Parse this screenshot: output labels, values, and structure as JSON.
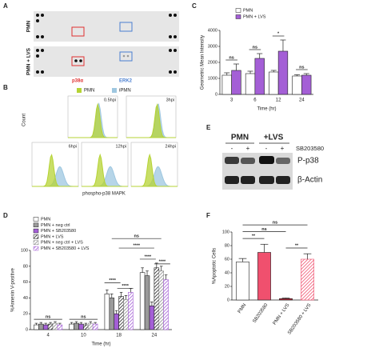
{
  "panel_labels": [
    "A",
    "B",
    "C",
    "D",
    "E",
    "F"
  ],
  "panel_a": {
    "rows": [
      "PMN",
      "PMN + LVS"
    ],
    "spots": [
      "p38α",
      "ERK2"
    ]
  },
  "panel_b": {
    "legend": [
      "PMN",
      "iPMN"
    ],
    "legend_colors": [
      "#b5d334",
      "#9ec7e0"
    ],
    "times": [
      "0.5hpi",
      "3hpi",
      "6hpi",
      "12hpi",
      "24hpi"
    ],
    "ylabel": "Count",
    "xlabel": "phospho-p38 MAPK"
  },
  "panel_e": {
    "groups": [
      "PMN",
      "+LVS"
    ],
    "treatment": "SB203580",
    "signs": [
      "-",
      "+",
      "-",
      "+"
    ],
    "bands": [
      "P-p38",
      "β-Actin"
    ]
  },
  "chart_data": [
    {
      "type": "bar",
      "ylabel": "Geometric Mean Intensity",
      "xlabel": "Time (hr)",
      "categories": [
        "3",
        "6",
        "12",
        "24"
      ],
      "series": [
        {
          "name": "PMN",
          "color": "#ffffff",
          "values": [
            1200,
            1300,
            1400,
            1150
          ],
          "errors": [
            150,
            150,
            100,
            80
          ]
        },
        {
          "name": "PMN + LVS",
          "color": "#a45fd6",
          "values": [
            1500,
            2250,
            2700,
            1200
          ],
          "errors": [
            400,
            300,
            700,
            100
          ]
        }
      ],
      "ylim": [
        0,
        4000
      ],
      "yticks": [
        0,
        1000,
        2000,
        3000,
        4000
      ],
      "annotations": [
        "ns",
        "ns",
        "*",
        "ns"
      ]
    },
    {
      "type": "bar",
      "ylabel": "%Annexin V-positive",
      "xlabel": "Time (hr)",
      "categories": [
        "4",
        "10",
        "18",
        "24"
      ],
      "series": [
        {
          "name": "PMN",
          "color": "#ffffff",
          "values": [
            6,
            7,
            45,
            72
          ],
          "errors": [
            2,
            2,
            5,
            6
          ]
        },
        {
          "name": "PMN + neg ctrl",
          "color": "#9a9a9a",
          "values": [
            7,
            8,
            40,
            68
          ],
          "errors": [
            2,
            2,
            5,
            6
          ]
        },
        {
          "name": "PMN + SB203580",
          "color": "#a45fd6",
          "values": [
            6,
            7,
            20,
            30
          ],
          "errors": [
            2,
            2,
            4,
            5
          ]
        },
        {
          "name": "PMN + LVS",
          "color": "#222222",
          "hatched": true,
          "values": [
            7,
            6,
            42,
            78
          ],
          "errors": [
            2,
            2,
            5,
            6
          ]
        },
        {
          "name": "PMN + neg ctrl + LVS",
          "color": "#8a8a8a",
          "hatched": true,
          "values": [
            8,
            8,
            38,
            74
          ],
          "errors": [
            2,
            2,
            5,
            6
          ]
        },
        {
          "name": "PMN + SB203580 + LVS",
          "color": "#a45fd6",
          "hatched": true,
          "values": [
            6,
            7,
            47,
            63
          ],
          "errors": [
            2,
            2,
            5,
            6
          ]
        }
      ],
      "ylim": [
        0,
        100
      ],
      "yticks": [
        0,
        20,
        40,
        60,
        80,
        100
      ],
      "annotations": [
        "ns",
        "ns",
        "****",
        "****",
        "****",
        "****",
        "****",
        "ns"
      ]
    },
    {
      "type": "bar",
      "ylabel": "%Apoptotic Cells",
      "categories": [
        "PMN",
        "SB203580",
        "PMN + LVS",
        "SB203580 + LVS"
      ],
      "values": [
        56,
        70,
        2,
        60
      ],
      "errors": [
        5,
        12,
        1,
        8
      ],
      "colors": [
        "#ffffff",
        "#f0506e",
        "#c0283c",
        "#f0506e"
      ],
      "hatched": [
        false,
        false,
        false,
        true
      ],
      "ylim": [
        0,
        100
      ],
      "yticks": [
        0,
        20,
        40,
        60,
        80,
        100
      ],
      "annotations": [
        "ns",
        "ns",
        "**",
        "**"
      ]
    }
  ]
}
